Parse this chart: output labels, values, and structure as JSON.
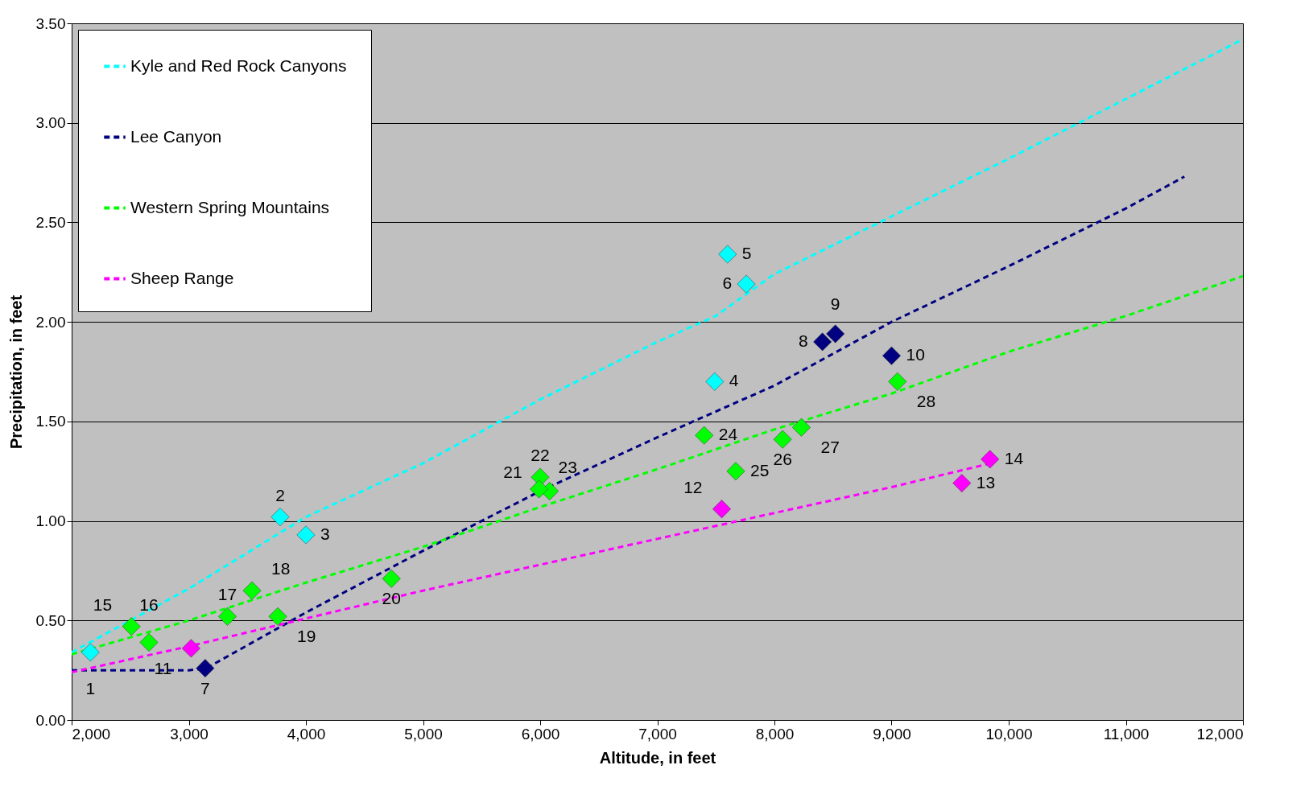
{
  "chart_data": {
    "type": "scatter",
    "xlabel": "Altitude, in feet",
    "ylabel": "Precipitation, in feet",
    "xlim": [
      2000,
      12000
    ],
    "ylim": [
      0,
      3.5
    ],
    "xticks": [
      {
        "value": 2000,
        "label": "2,000"
      },
      {
        "value": 3000,
        "label": "3,000"
      },
      {
        "value": 4000,
        "label": "4,000"
      },
      {
        "value": 5000,
        "label": "5,000"
      },
      {
        "value": 6000,
        "label": "6,000"
      },
      {
        "value": 7000,
        "label": "7,000"
      },
      {
        "value": 8000,
        "label": "8,000"
      },
      {
        "value": 9000,
        "label": "9,000"
      },
      {
        "value": 10000,
        "label": "10,000"
      },
      {
        "value": 11000,
        "label": "11,000"
      },
      {
        "value": 12000,
        "label": "12,000"
      }
    ],
    "yticks": [
      {
        "value": 0,
        "label": "0.00"
      },
      {
        "value": 0.5,
        "label": "0.50"
      },
      {
        "value": 1,
        "label": "1.00"
      },
      {
        "value": 1.5,
        "label": "1.50"
      },
      {
        "value": 2,
        "label": "2.00"
      },
      {
        "value": 2.5,
        "label": "2.50"
      },
      {
        "value": 3,
        "label": "3.00"
      },
      {
        "value": 3.5,
        "label": "3.50"
      }
    ],
    "grid": "y",
    "legend": "top left",
    "line_style": "dashed",
    "series": [
      {
        "type": "line",
        "name": "Kyle and Red Rock Canyons",
        "color": "#00ffff",
        "x": [
          2000,
          3000,
          4000,
          5000,
          6000,
          7000,
          7500,
          8000,
          9000,
          10000,
          11000,
          12000
        ],
        "values": [
          0.34,
          0.66,
          1.02,
          1.29,
          1.61,
          1.9,
          2.03,
          2.24,
          2.53,
          2.82,
          3.12,
          3.42
        ]
      },
      {
        "type": "line",
        "name": "Lee Canyon",
        "color": "#000080",
        "x": [
          2000,
          3000,
          3150,
          4000,
          5000,
          5500,
          6000,
          7000,
          8000,
          9000,
          10000,
          11000,
          11500
        ],
        "values": [
          0.25,
          0.25,
          0.26,
          0.54,
          0.85,
          1.0,
          1.15,
          1.42,
          1.68,
          2.0,
          2.28,
          2.57,
          2.73
        ]
      },
      {
        "type": "line",
        "name": "Western Spring Mountains",
        "color": "#00ff00",
        "x": [
          2000,
          3000,
          4000,
          5000,
          6000,
          7000,
          8000,
          9000,
          10000,
          11000,
          12000
        ],
        "values": [
          0.33,
          0.5,
          0.69,
          0.87,
          1.07,
          1.26,
          1.46,
          1.64,
          1.85,
          2.03,
          2.23
        ]
      },
      {
        "type": "line",
        "name": "Sheep Range",
        "color": "#ff00ff",
        "x": [
          2000,
          3000,
          4000,
          5000,
          6000,
          7000,
          8000,
          9000,
          9850
        ],
        "values": [
          0.24,
          0.37,
          0.51,
          0.65,
          0.78,
          0.91,
          1.04,
          1.17,
          1.29
        ]
      },
      {
        "marker": "diamond",
        "color": "#00ffff",
        "x": [
          2160,
          3780,
          4000,
          7490,
          7600,
          7760
        ],
        "values": [
          0.34,
          1.02,
          0.93,
          1.7,
          2.34,
          2.19
        ]
      },
      {
        "marker": "diamond",
        "color": "#000080",
        "x": [
          3140,
          8410,
          8520,
          9000
        ],
        "values": [
          0.26,
          1.9,
          1.94,
          1.83
        ]
      },
      {
        "marker": "diamond",
        "color": "#ff00ff",
        "x": [
          3020,
          7550,
          9600,
          9840
        ],
        "values": [
          0.36,
          1.06,
          1.19,
          1.31
        ]
      },
      {
        "marker": "diamond",
        "color": "#00ff00",
        "x": [
          2510,
          2660,
          3330,
          3540,
          3760,
          4730,
          6080,
          6000,
          5990,
          7400,
          7670,
          8070,
          8230,
          9050
        ],
        "values": [
          0.47,
          0.39,
          0.52,
          0.65,
          0.52,
          0.71,
          1.15,
          1.22,
          1.16,
          1.43,
          1.25,
          1.41,
          1.47,
          1.7
        ]
      }
    ],
    "annotations": [
      {
        "text": "1",
        "x": 2160,
        "y": 0.34
      },
      {
        "text": "2",
        "x": 3780,
        "y": 1.02
      },
      {
        "text": "3",
        "x": 4000,
        "y": 0.93
      },
      {
        "text": "4",
        "x": 7490,
        "y": 1.7
      },
      {
        "text": "5",
        "x": 7600,
        "y": 2.34
      },
      {
        "text": "6",
        "x": 7760,
        "y": 2.19
      },
      {
        "text": "7",
        "x": 3140,
        "y": 0.26
      },
      {
        "text": "8",
        "x": 8410,
        "y": 1.9
      },
      {
        "text": "9",
        "x": 8520,
        "y": 1.94
      },
      {
        "text": "10",
        "x": 9000,
        "y": 1.83
      },
      {
        "text": "11",
        "x": 3020,
        "y": 0.36
      },
      {
        "text": "12",
        "x": 7550,
        "y": 1.06
      },
      {
        "text": "13",
        "x": 9600,
        "y": 1.19
      },
      {
        "text": "14",
        "x": 9840,
        "y": 1.31
      },
      {
        "text": "15",
        "x": 2510,
        "y": 0.47
      },
      {
        "text": "16",
        "x": 2660,
        "y": 0.39
      },
      {
        "text": "17",
        "x": 3330,
        "y": 0.52
      },
      {
        "text": "18",
        "x": 3540,
        "y": 0.65
      },
      {
        "text": "19",
        "x": 3760,
        "y": 0.52
      },
      {
        "text": "20",
        "x": 4730,
        "y": 0.71
      },
      {
        "text": "21",
        "x": 6080,
        "y": 1.15
      },
      {
        "text": "22",
        "x": 6000,
        "y": 1.22
      },
      {
        "text": "23",
        "x": 5990,
        "y": 1.16
      },
      {
        "text": "24",
        "x": 7400,
        "y": 1.43
      },
      {
        "text": "25",
        "x": 7670,
        "y": 1.25
      },
      {
        "text": "26",
        "x": 8070,
        "y": 1.41
      },
      {
        "text": "27",
        "x": 8230,
        "y": 1.47
      },
      {
        "text": "28",
        "x": 9050,
        "y": 1.7
      }
    ]
  }
}
